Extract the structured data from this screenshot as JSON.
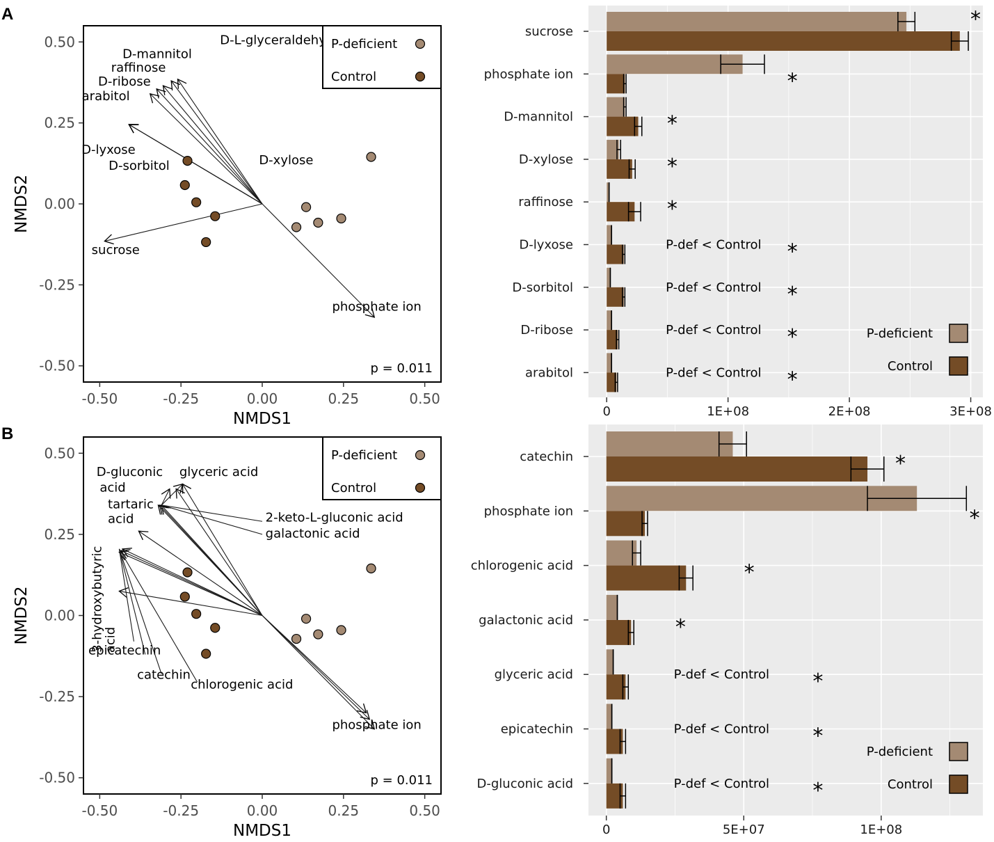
{
  "colors": {
    "p_deficient": "#a48a73",
    "control": "#744c26",
    "panel_bg": "#ebebeb",
    "grid": "#ffffff"
  },
  "chart_data": [
    {
      "panel": "A",
      "type": "scatter",
      "subtype": "NMDS biplot",
      "xlabel": "NMDS1",
      "ylabel": "NMDS2",
      "xlim": [
        -0.55,
        0.55
      ],
      "ylim": [
        -0.55,
        0.55
      ],
      "xticks": [
        "-0.50",
        "-0.25",
        "0.00",
        "0.25",
        "0.50"
      ],
      "yticks": [
        "0.50",
        "0.25",
        "0.00",
        "-0.25",
        "-0.50"
      ],
      "legend": [
        {
          "label": "P-deficient",
          "group": "pdef"
        },
        {
          "label": "Control",
          "group": "ctrl"
        }
      ],
      "p_value": "p = 0.011",
      "points": [
        {
          "group": "pdef",
          "x": 0.335,
          "y": 0.145
        },
        {
          "group": "pdef",
          "x": 0.135,
          "y": -0.01
        },
        {
          "group": "pdef",
          "x": 0.105,
          "y": -0.072
        },
        {
          "group": "pdef",
          "x": 0.172,
          "y": -0.058
        },
        {
          "group": "pdef",
          "x": 0.243,
          "y": -0.045
        },
        {
          "group": "ctrl",
          "x": -0.23,
          "y": 0.133
        },
        {
          "group": "ctrl",
          "x": -0.238,
          "y": 0.058
        },
        {
          "group": "ctrl",
          "x": -0.203,
          "y": 0.005
        },
        {
          "group": "ctrl",
          "x": -0.145,
          "y": -0.038
        },
        {
          "group": "ctrl",
          "x": -0.173,
          "y": -0.118
        }
      ],
      "arrows": [
        {
          "x": -0.41,
          "y": 0.245
        },
        {
          "x": -0.41,
          "y": 0.245
        },
        {
          "x": -0.41,
          "y": 0.245
        },
        {
          "x": -0.345,
          "y": 0.34
        },
        {
          "x": -0.325,
          "y": 0.355
        },
        {
          "x": -0.305,
          "y": 0.365
        },
        {
          "x": -0.28,
          "y": 0.38
        },
        {
          "x": -0.26,
          "y": 0.385
        },
        {
          "x": -0.485,
          "y": -0.115
        },
        {
          "x": 0.345,
          "y": -0.35
        }
      ],
      "arrow_labels": [
        {
          "text": "D-L-glyceraldehyde",
          "x": -0.13,
          "y": 0.493,
          "anchor": "start"
        },
        {
          "text": "D-mannitol",
          "x": -0.43,
          "y": 0.45,
          "anchor": "start"
        },
        {
          "text": "raffinose",
          "x": -0.465,
          "y": 0.408,
          "anchor": "start"
        },
        {
          "text": "D-ribose",
          "x": -0.505,
          "y": 0.365,
          "anchor": "start"
        },
        {
          "text": "arabitol",
          "x": -0.555,
          "y": 0.32,
          "anchor": "start"
        },
        {
          "text": "D-lyxose",
          "x": -0.39,
          "y": 0.155,
          "anchor": "end"
        },
        {
          "text": "D-sorbitol",
          "x": -0.285,
          "y": 0.105,
          "anchor": "end"
        },
        {
          "text": "D-xylose",
          "x": -0.01,
          "y": 0.122,
          "anchor": "start"
        },
        {
          "text": "sucrose",
          "x": -0.525,
          "y": -0.155,
          "anchor": "start"
        },
        {
          "text": "phosphate ion",
          "x": 0.215,
          "y": -0.33,
          "anchor": "start"
        }
      ]
    },
    {
      "panel": "A",
      "type": "bar",
      "orientation": "horizontal",
      "xlim": [
        -15000000,
        310000000
      ],
      "xticks": [
        {
          "value": 0,
          "label": "0"
        },
        {
          "value": 100000000,
          "label": "1E+08"
        },
        {
          "value": 200000000,
          "label": "2E+08"
        },
        {
          "value": 300000000,
          "label": "3E+08"
        }
      ],
      "legend": [
        {
          "label": "P-deficient",
          "series": "pdef"
        },
        {
          "label": "Control",
          "series": "ctrl"
        }
      ],
      "categories": [
        "sucrose",
        "phosphate ion",
        "D-mannitol",
        "D-xylose",
        "raffinose",
        "D-lyxose",
        "D-sorbitol",
        "D-ribose",
        "arabitol"
      ],
      "series": [
        {
          "name": "P-deficient",
          "key": "pdef",
          "values": [
            247000000,
            112000000,
            15000000,
            10000000,
            2000000,
            4000000,
            3000000,
            4000000,
            4000000
          ],
          "errors": [
            7000000,
            18000000,
            1000000,
            1500000,
            0,
            0,
            0,
            0,
            0
          ]
        },
        {
          "name": "Control",
          "key": "ctrl",
          "values": [
            291000000,
            15000000,
            26000000,
            21000000,
            23000000,
            14000000,
            14000000,
            9000000,
            8000000
          ],
          "errors": [
            7000000,
            1000000,
            3000000,
            2500000,
            5000000,
            1000000,
            1000000,
            1000000,
            1000000
          ]
        }
      ],
      "notes": [
        "",
        "",
        "",
        "",
        "",
        "P-def < Control",
        "P-def < Control",
        "P-def < Control",
        "P-def < Control"
      ],
      "stars": [
        {
          "mark": "*",
          "x": 304000000,
          "row": 0,
          "offset": -0.45
        },
        {
          "mark": "*",
          "x": 153000000,
          "row": 1,
          "offset": 0
        },
        {
          "mark": "*",
          "x": 54000000,
          "row": 2,
          "offset": 0
        },
        {
          "mark": "*",
          "x": 54000000,
          "row": 3,
          "offset": 0
        },
        {
          "mark": "*",
          "x": 54000000,
          "row": 4,
          "offset": 0
        },
        {
          "mark": "*",
          "x": 153000000,
          "row": 5,
          "offset": 0
        },
        {
          "mark": "*",
          "x": 153000000,
          "row": 6,
          "offset": 0
        },
        {
          "mark": "*",
          "x": 153000000,
          "row": 7,
          "offset": 0
        },
        {
          "mark": "*",
          "x": 153000000,
          "row": 8,
          "offset": 0
        }
      ]
    },
    {
      "panel": "B",
      "type": "scatter",
      "subtype": "NMDS biplot",
      "xlabel": "NMDS1",
      "ylabel": "NMDS2",
      "xlim": [
        -0.55,
        0.55
      ],
      "ylim": [
        -0.55,
        0.55
      ],
      "xticks": [
        "-0.50",
        "-0.25",
        "0.00",
        "0.25",
        "0.50"
      ],
      "yticks": [
        "0.50",
        "0.25",
        "0.00",
        "-0.25",
        "-0.50"
      ],
      "legend": [
        {
          "label": "P-deficient",
          "group": "pdef"
        },
        {
          "label": "Control",
          "group": "ctrl"
        }
      ],
      "p_value": "p = 0.011",
      "points": [
        {
          "group": "pdef",
          "x": 0.335,
          "y": 0.145
        },
        {
          "group": "pdef",
          "x": 0.135,
          "y": -0.01
        },
        {
          "group": "pdef",
          "x": 0.105,
          "y": -0.072
        },
        {
          "group": "pdef",
          "x": 0.172,
          "y": -0.058
        },
        {
          "group": "pdef",
          "x": 0.243,
          "y": -0.045
        },
        {
          "group": "ctrl",
          "x": -0.23,
          "y": 0.133
        },
        {
          "group": "ctrl",
          "x": -0.238,
          "y": 0.058
        },
        {
          "group": "ctrl",
          "x": -0.203,
          "y": 0.005
        },
        {
          "group": "ctrl",
          "x": -0.145,
          "y": -0.038
        },
        {
          "group": "ctrl",
          "x": -0.173,
          "y": -0.118
        }
      ],
      "arrows": [
        {
          "x": -0.31,
          "y": 0.34
        },
        {
          "x": -0.315,
          "y": 0.34
        },
        {
          "x": -0.32,
          "y": 0.34
        },
        {
          "x": -0.245,
          "y": 0.405
        },
        {
          "x": -0.265,
          "y": 0.39
        },
        {
          "x": -0.43,
          "y": 0.205
        },
        {
          "x": -0.435,
          "y": 0.2
        },
        {
          "x": -0.44,
          "y": 0.195
        },
        {
          "x": -0.44,
          "y": 0.075
        },
        {
          "x": -0.38,
          "y": 0.26
        },
        {
          "x": 0.32,
          "y": -0.3
        },
        {
          "x": 0.33,
          "y": -0.32
        },
        {
          "x": 0.345,
          "y": -0.35
        }
      ],
      "arrow_tails": [
        {
          "x": -0.31,
          "y": 0.34,
          "tx": -0.245,
          "ty": 0.405,
          "head": true
        },
        {
          "x": -0.31,
          "y": 0.34,
          "tx": -0.285,
          "ty": 0.39,
          "head": true
        },
        {
          "x": -0.31,
          "y": 0.34,
          "tx": 0.0,
          "ty": 0.29,
          "head": false
        },
        {
          "x": -0.31,
          "y": 0.34,
          "tx": 0.0,
          "ty": 0.25,
          "head": false
        },
        {
          "x": -0.44,
          "y": 0.205,
          "tx": -0.36,
          "ty": -0.12,
          "head": false
        },
        {
          "x": -0.44,
          "y": 0.205,
          "tx": -0.31,
          "ty": -0.18,
          "head": false
        },
        {
          "x": -0.44,
          "y": 0.205,
          "tx": -0.2,
          "ty": -0.205,
          "head": false
        },
        {
          "x": -0.44,
          "y": 0.205,
          "tx": -0.395,
          "ty": -0.08,
          "head": false
        }
      ],
      "arrow_labels": [
        {
          "text": "D-gluconic",
          "x": -0.51,
          "y": 0.43,
          "anchor": "start"
        },
        {
          "text": "acid",
          "x": -0.5,
          "y": 0.382,
          "anchor": "start"
        },
        {
          "text": "glyceric acid",
          "x": -0.255,
          "y": 0.43,
          "anchor": "start"
        },
        {
          "text": "tartaric",
          "x": -0.475,
          "y": 0.33,
          "anchor": "start"
        },
        {
          "text": "acid",
          "x": -0.475,
          "y": 0.285,
          "anchor": "start"
        },
        {
          "text": "2-keto-L-gluconic acid",
          "x": 0.01,
          "y": 0.29,
          "anchor": "start"
        },
        {
          "text": "galactonic acid",
          "x": 0.01,
          "y": 0.24,
          "anchor": "start"
        },
        {
          "text": "epicatechin",
          "x": -0.535,
          "y": -0.12,
          "anchor": "start"
        },
        {
          "text": "catechin",
          "x": -0.385,
          "y": -0.195,
          "anchor": "start"
        },
        {
          "text": "chlorogenic acid",
          "x": -0.22,
          "y": -0.225,
          "anchor": "start"
        },
        {
          "text": "phosphate ion",
          "x": 0.215,
          "y": -0.35,
          "anchor": "start"
        }
      ],
      "vertical_labels": [
        {
          "text": "3-hydroxybutyric",
          "x": -0.495,
          "y": 0.05
        },
        {
          "text": "acid",
          "x": -0.455,
          "y": -0.075
        }
      ]
    },
    {
      "panel": "B",
      "type": "bar",
      "orientation": "horizontal",
      "xlim": [
        -6500000,
        137000000
      ],
      "xticks": [
        {
          "value": 0,
          "label": "0"
        },
        {
          "value": 50000000,
          "label": "5E+07"
        },
        {
          "value": 100000000,
          "label": "1E+08"
        }
      ],
      "legend": [
        {
          "label": "P-deficient",
          "series": "pdef"
        },
        {
          "label": "Control",
          "series": "ctrl"
        }
      ],
      "categories": [
        "catechin",
        "phosphate ion",
        "chlorogenic acid",
        "galactonic acid",
        "glyceric acid",
        "epicatechin",
        "D-gluconic acid"
      ],
      "series": [
        {
          "name": "P-deficient",
          "key": "pdef",
          "values": [
            46000000,
            113000000,
            11000000,
            4000000,
            2500000,
            2000000,
            2000000
          ],
          "errors": [
            5000000,
            18000000,
            1500000,
            0,
            0,
            0,
            0
          ]
        },
        {
          "name": "Control",
          "key": "ctrl",
          "values": [
            95000000,
            14000000,
            29000000,
            9000000,
            7000000,
            6000000,
            6000000
          ],
          "errors": [
            6000000,
            1000000,
            2500000,
            1000000,
            1000000,
            1000000,
            1000000
          ]
        }
      ],
      "notes": [
        "",
        "",
        "",
        "",
        "P-def < Control",
        "P-def < Control",
        "P-def < Control"
      ],
      "stars": [
        {
          "mark": "*",
          "x": 107000000,
          "row": 0,
          "offset": 0
        },
        {
          "mark": "*",
          "x": 134000000,
          "row": 1,
          "offset": 0
        },
        {
          "mark": "*",
          "x": 52000000,
          "row": 2,
          "offset": 0
        },
        {
          "mark": "*",
          "x": 27000000,
          "row": 3,
          "offset": 0
        },
        {
          "mark": "*",
          "x": 77000000,
          "row": 4,
          "offset": 0
        },
        {
          "mark": "*",
          "x": 77000000,
          "row": 5,
          "offset": 0
        },
        {
          "mark": "*",
          "x": 77000000,
          "row": 6,
          "offset": 0
        }
      ]
    }
  ],
  "panel_labels": [
    "A",
    "B"
  ]
}
